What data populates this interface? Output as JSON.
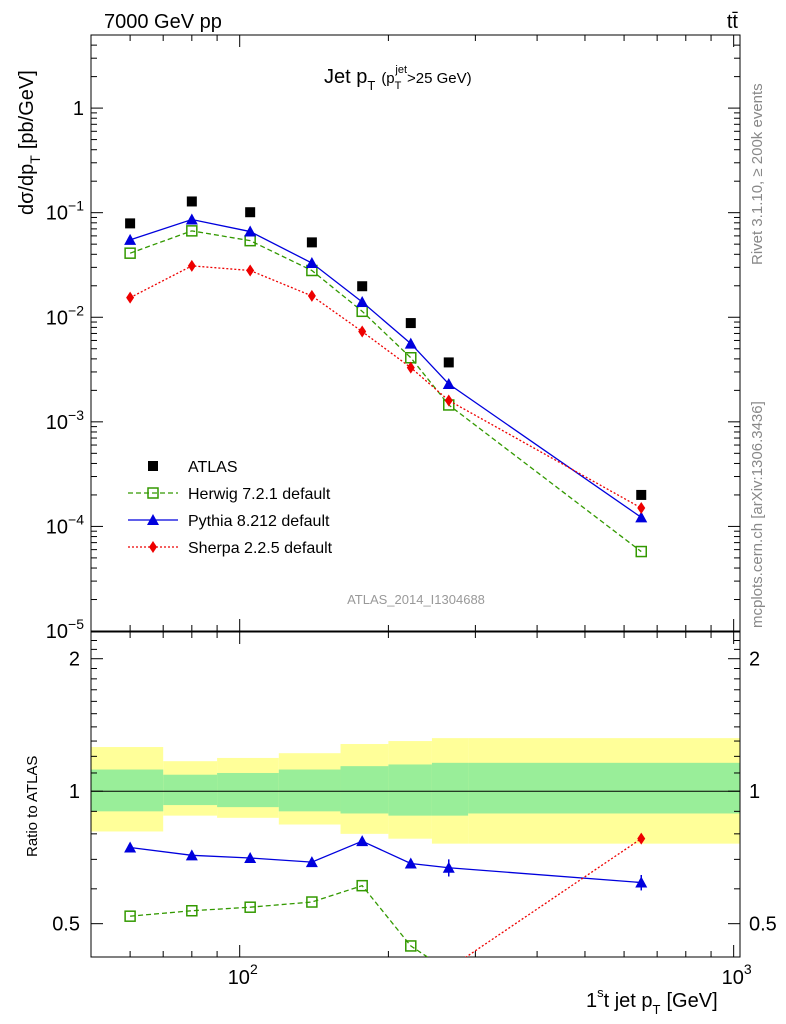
{
  "header": {
    "energy_label": "7000 GeV pp",
    "process_label": "tt̄"
  },
  "side_text": {
    "rivet": "Rivet 3.1.10, ≥ 200k events",
    "source": "mcplots.cern.ch [arXiv:1306.3436]"
  },
  "watermark": "ATLAS_2014_I1304688",
  "chart_data": [
    {
      "type": "scatter",
      "panel": "main",
      "title": "Jet p_T (p_T^jet>25 GeV)",
      "title_parts": {
        "main": "Jet p",
        "main_sub": "T",
        "paren_open": "(p",
        "paren_sub": "T",
        "paren_sup": "jet",
        "paren_rest": ">25 GeV)"
      },
      "ylabel": "dσ/dp_T [pb/GeV]",
      "ylabel_parts": {
        "main": "dσ/dp",
        "sub": "T",
        "unit": "[pb/GeV]"
      },
      "xlabel": "1st jet p_T [GeV]",
      "xlabel_parts": {
        "pre": "1",
        "sup": "s",
        "mid": "t jet p",
        "sub": "T",
        "unit": "[GeV]"
      },
      "x_scale": "log",
      "y_scale": "log",
      "xlim": [
        50,
        1030
      ],
      "ylim": [
        1e-05,
        5
      ],
      "y_tick_labels": [
        {
          "value": 1e-05,
          "base": "10",
          "exp": "−5"
        },
        {
          "value": 0.0001,
          "base": "10",
          "exp": "−4"
        },
        {
          "value": 0.001,
          "base": "10",
          "exp": "−3"
        },
        {
          "value": 0.01,
          "base": "10",
          "exp": "−2"
        },
        {
          "value": 0.1,
          "base": "10",
          "exp": "−1"
        },
        {
          "value": 1,
          "base": "1",
          "exp": ""
        }
      ],
      "x_tick_labels": [
        {
          "value": 100,
          "base": "10",
          "exp": "2"
        },
        {
          "value": 1000,
          "base": "10",
          "exp": "3"
        }
      ],
      "legend_position": "lower-left",
      "series": [
        {
          "name": "ATLAS",
          "color": "#000000",
          "marker": "square",
          "line": "none",
          "x": [
            60,
            80,
            105,
            140,
            177,
            222,
            265,
            650
          ],
          "y": [
            0.079,
            0.128,
            0.101,
            0.052,
            0.0198,
            0.0088,
            0.0037,
            0.0002
          ]
        },
        {
          "name": "Herwig 7.2.1 default",
          "color": "#339900",
          "marker": "open-square",
          "line": "dashed",
          "x": [
            60,
            80,
            105,
            140,
            177,
            222,
            265,
            650
          ],
          "y": [
            0.041,
            0.067,
            0.054,
            0.028,
            0.0114,
            0.0041,
            0.00145,
            5.75e-05
          ]
        },
        {
          "name": "Pythia 8.212 default",
          "color": "#0000dd",
          "marker": "triangle",
          "line": "solid",
          "x": [
            60,
            80,
            105,
            140,
            177,
            222,
            265,
            650
          ],
          "y": [
            0.055,
            0.086,
            0.066,
            0.033,
            0.014,
            0.0056,
            0.0023,
            0.000122
          ]
        },
        {
          "name": "Sherpa 2.2.5 default",
          "color": "#ee0000",
          "marker": "diamond",
          "line": "dotted",
          "x": [
            60,
            80,
            105,
            140,
            177,
            222,
            265,
            650
          ],
          "y": [
            0.0154,
            0.031,
            0.028,
            0.016,
            0.0073,
            0.0033,
            0.0016,
            0.00015
          ]
        }
      ]
    },
    {
      "type": "line",
      "panel": "ratio",
      "ylabel": "Ratio to ATLAS",
      "x_scale": "log",
      "xlim": [
        50,
        1030
      ],
      "ylim": [
        0.42,
        2.3
      ],
      "y_tick_labels": [
        {
          "value": 0.5,
          "text": "0.5"
        },
        {
          "value": 1,
          "text": "1"
        },
        {
          "value": 2,
          "text": "2"
        }
      ],
      "reference_line": 1,
      "uncertainty_bands": [
        {
          "x0": 50,
          "x1": 70,
          "inner": [
            0.9,
            1.12
          ],
          "outer": [
            0.81,
            1.26
          ]
        },
        {
          "x0": 70,
          "x1": 90,
          "inner": [
            0.93,
            1.09
          ],
          "outer": [
            0.88,
            1.17
          ]
        },
        {
          "x0": 90,
          "x1": 120,
          "inner": [
            0.92,
            1.1
          ],
          "outer": [
            0.87,
            1.19
          ]
        },
        {
          "x0": 120,
          "x1": 160,
          "inner": [
            0.9,
            1.12
          ],
          "outer": [
            0.84,
            1.22
          ]
        },
        {
          "x0": 160,
          "x1": 200,
          "inner": [
            0.89,
            1.14
          ],
          "outer": [
            0.8,
            1.28
          ]
        },
        {
          "x0": 200,
          "x1": 245,
          "inner": [
            0.88,
            1.15
          ],
          "outer": [
            0.78,
            1.3
          ]
        },
        {
          "x0": 245,
          "x1": 290,
          "inner": [
            0.88,
            1.16
          ],
          "outer": [
            0.76,
            1.32
          ]
        },
        {
          "x0": 290,
          "x1": 1030,
          "inner": [
            0.89,
            1.16
          ],
          "outer": [
            0.76,
            1.32
          ]
        }
      ],
      "series": [
        {
          "name": "Herwig 7.2.1 default",
          "color": "#339900",
          "marker": "open-square",
          "line": "dashed",
          "x": [
            60,
            80,
            105,
            140,
            177,
            222,
            265
          ],
          "y": [
            0.52,
            0.535,
            0.545,
            0.56,
            0.61,
            0.445,
            0.39
          ]
        },
        {
          "name": "Pythia 8.212 default",
          "color": "#0000dd",
          "marker": "triangle",
          "line": "solid",
          "x": [
            60,
            80,
            105,
            140,
            177,
            222,
            265,
            650
          ],
          "y": [
            0.745,
            0.715,
            0.705,
            0.69,
            0.77,
            0.685,
            0.67,
            0.62
          ],
          "err": [
            0,
            0,
            0,
            0,
            0,
            0.015,
            0.03,
            0.025
          ]
        },
        {
          "name": "Sherpa 2.2.5 default",
          "color": "#ee0000",
          "marker": "diamond",
          "line": "dotted",
          "x": [
            265,
            650
          ],
          "y": [
            0.395,
            0.78
          ]
        }
      ]
    }
  ]
}
